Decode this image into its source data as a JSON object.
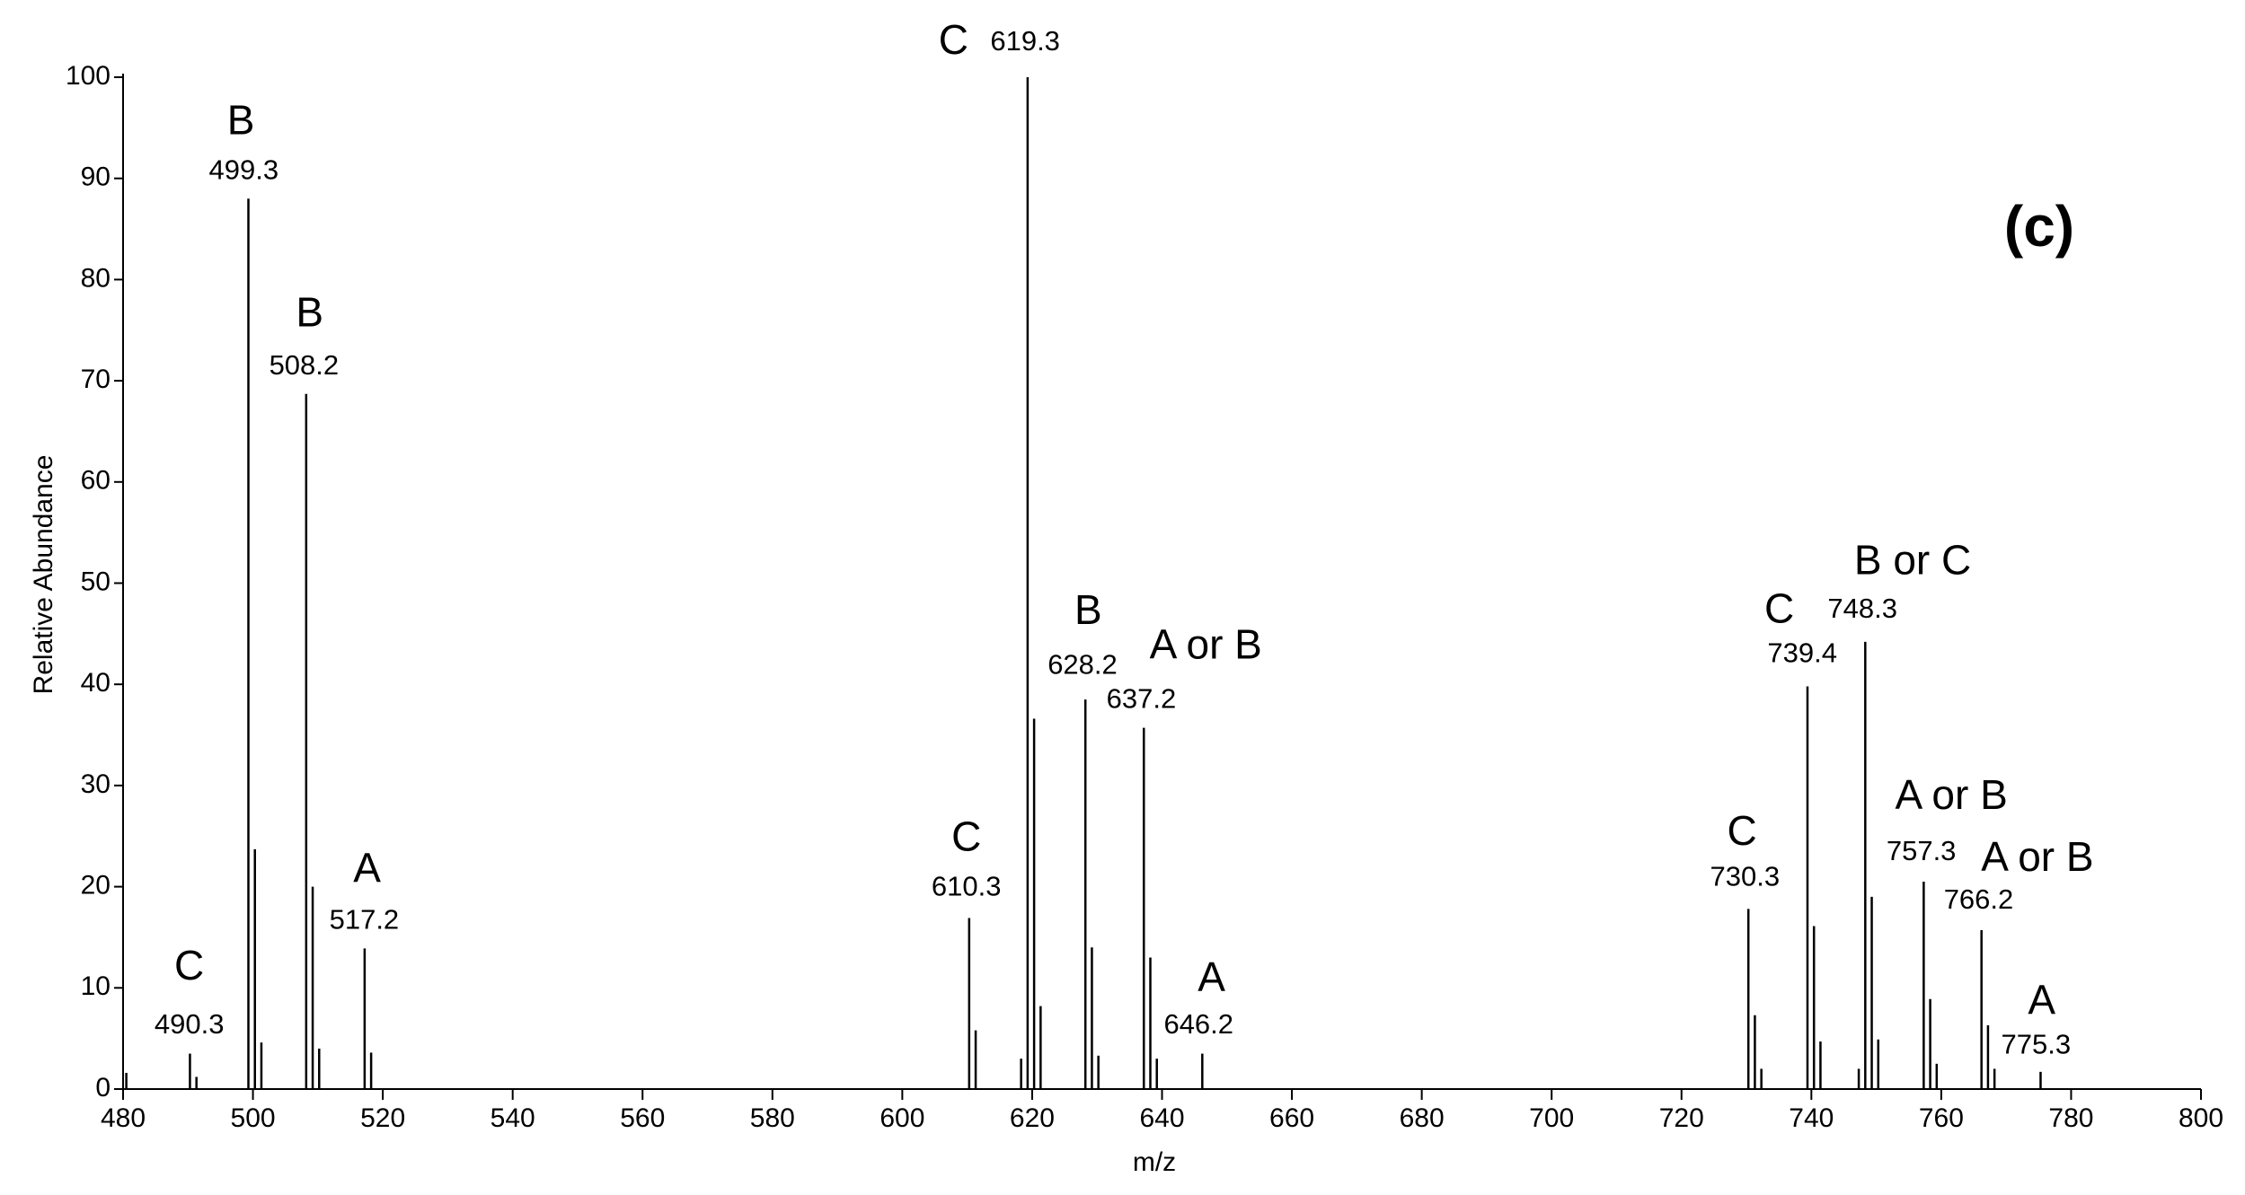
{
  "chart_data": {
    "type": "stem",
    "title": "(c)",
    "xlabel": "m/z",
    "ylabel": "Relative Abundance",
    "xlim": [
      480,
      800
    ],
    "ylim": [
      0,
      100
    ],
    "xticks": [
      480,
      500,
      520,
      540,
      560,
      580,
      600,
      620,
      640,
      660,
      680,
      700,
      720,
      740,
      760,
      780,
      800
    ],
    "yticks": [
      0,
      10,
      20,
      30,
      40,
      50,
      60,
      70,
      80,
      90,
      100
    ],
    "color": "#000000",
    "series": [
      {
        "x": [
          490.3,
          499.3,
          508.2,
          517.2,
          610.3,
          619.3,
          628.2,
          637.2,
          646.2,
          730.3,
          739.4,
          748.3,
          757.3,
          766.2,
          775.3
        ],
        "values": [
          3.5,
          88,
          68.7,
          13.9,
          16.9,
          100,
          38.5,
          35.7,
          3.5,
          17.8,
          39.8,
          44.2,
          20.5,
          15.7,
          1.7
        ],
        "labels": [
          "C",
          "B",
          "B",
          "A",
          "C",
          "C",
          "B",
          "A or B",
          "A",
          "C",
          "C",
          "B or C",
          "A or B",
          "A or B",
          "A"
        ]
      },
      {
        "x": [
          480.5,
          491.3,
          500.3,
          501.3,
          509.2,
          510.2,
          518.2,
          611.3,
          618.3,
          620.3,
          621.3,
          629.2,
          630.2,
          638.2,
          639.2,
          731.3,
          732.3,
          740.4,
          741.4,
          747.3,
          749.3,
          750.3,
          758.3,
          759.3,
          767.2,
          768.2
        ],
        "values": [
          1.6,
          1.2,
          23.7,
          4.6,
          20,
          4,
          3.6,
          5.8,
          3,
          36.6,
          8.2,
          14,
          3.3,
          13,
          3,
          7.3,
          2,
          16.1,
          4.7,
          2,
          19,
          4.9,
          8.9,
          2.5,
          6.3,
          2
        ]
      }
    ]
  }
}
